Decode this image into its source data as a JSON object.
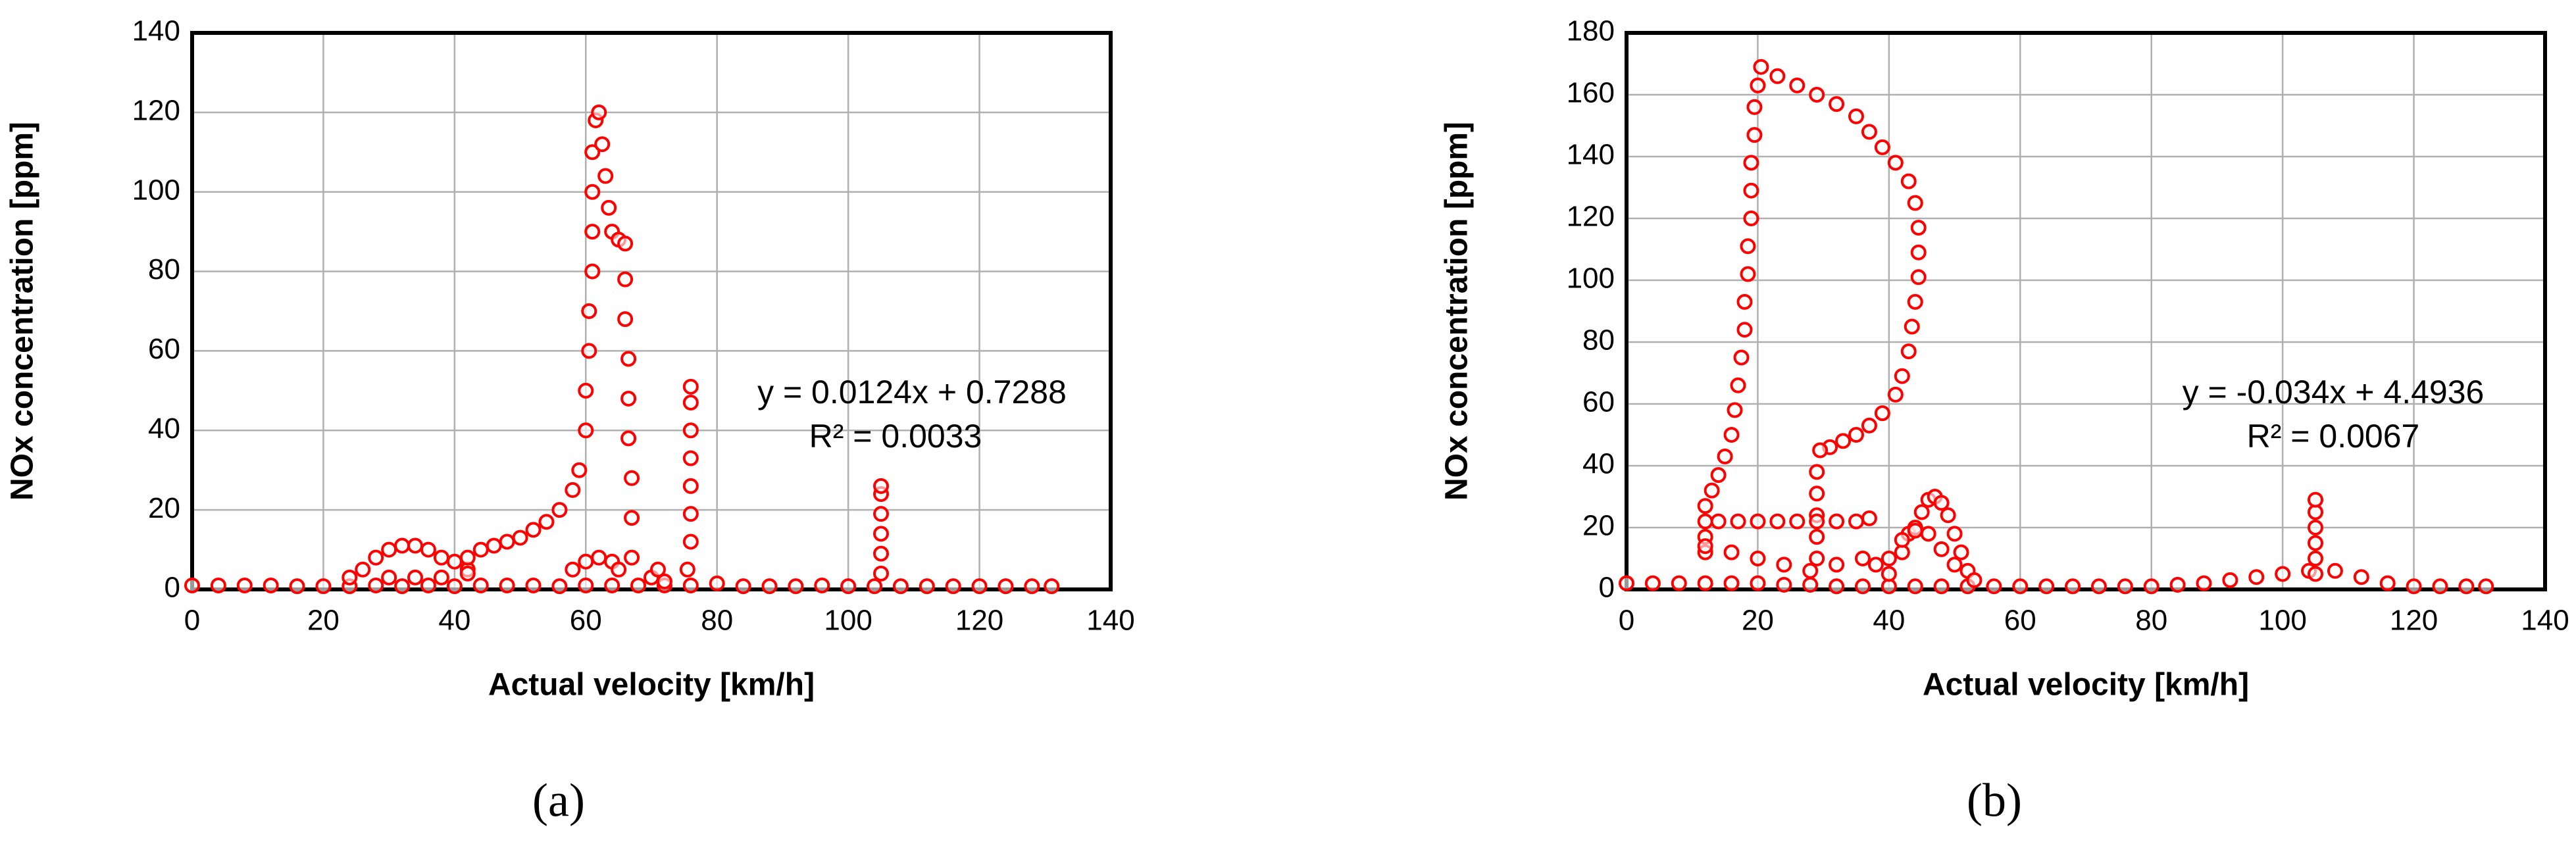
{
  "chart_data": [
    {
      "type": "scatter",
      "caption": "(a)",
      "xlabel": "Actual velocity [km/h]",
      "ylabel": "NOx concentration [ppm]",
      "annotations": [
        "y = 0.0124x + 0.7288",
        "R² = 0.0033"
      ],
      "color": "#ff0000",
      "grid": true,
      "xlim": [
        0,
        140
      ],
      "xticks": [
        0,
        20,
        40,
        60,
        80,
        100,
        120,
        140
      ],
      "ylim": [
        0,
        140
      ],
      "yticks": [
        0,
        20,
        40,
        60,
        80,
        100,
        120,
        140
      ],
      "x": [
        0,
        4,
        8,
        12,
        16,
        20,
        24,
        28,
        32,
        36,
        40,
        44,
        48,
        52,
        56,
        60,
        64,
        68,
        72,
        76,
        80,
        84,
        88,
        92,
        96,
        100,
        104,
        108,
        112,
        116,
        120,
        124,
        128,
        131,
        24,
        26,
        28,
        30,
        32,
        34,
        36,
        38,
        40,
        42,
        30,
        34,
        38,
        42,
        42,
        44,
        46,
        48,
        50,
        52,
        54,
        56,
        58,
        59,
        60,
        60,
        60.5,
        60.5,
        61,
        61,
        61,
        61,
        61.5,
        62,
        62.5,
        63,
        63.5,
        64,
        65,
        66,
        66,
        66,
        66.5,
        66.5,
        66.5,
        67,
        67,
        67,
        58,
        60,
        62,
        64,
        65,
        70,
        71,
        72,
        75.5,
        76,
        76,
        76,
        76,
        76,
        76,
        76,
        105,
        105,
        105,
        105,
        105,
        105
      ],
      "values": [
        1,
        1,
        1,
        1,
        0.8,
        0.8,
        0.8,
        1,
        0.8,
        1,
        0.8,
        1,
        1,
        1,
        0.8,
        1,
        1,
        1,
        1,
        1,
        1.5,
        0.8,
        0.8,
        0.8,
        1,
        0.8,
        0.8,
        0.8,
        0.8,
        0.8,
        0.8,
        0.8,
        0.8,
        0.8,
        3,
        5,
        8,
        10,
        11,
        11,
        10,
        8,
        7,
        5,
        3,
        3,
        3,
        4,
        8,
        10,
        11,
        12,
        13,
        15,
        17,
        20,
        25,
        30,
        40,
        50,
        60,
        70,
        80,
        90,
        100,
        110,
        118,
        120,
        112,
        104,
        96,
        90,
        88,
        87,
        78,
        68,
        58,
        48,
        38,
        28,
        18,
        8,
        5,
        7,
        8,
        7,
        5,
        3,
        5,
        2,
        5,
        12,
        19,
        26,
        33,
        40,
        47,
        51,
        4,
        9,
        14,
        19,
        24,
        26
      ]
    },
    {
      "type": "scatter",
      "caption": "(b)",
      "xlabel": "Actual velocity [km/h]",
      "ylabel": "NOx concentration [ppm]",
      "annotations": [
        "y = -0.034x + 4.4936",
        "R² = 0.0067"
      ],
      "color": "#ff0000",
      "grid": true,
      "xlim": [
        0,
        140
      ],
      "xticks": [
        0,
        20,
        40,
        60,
        80,
        100,
        120,
        140
      ],
      "ylim": [
        0,
        180
      ],
      "yticks": [
        0,
        20,
        40,
        60,
        80,
        100,
        120,
        140,
        160,
        180
      ],
      "x": [
        0,
        4,
        8,
        12,
        16,
        20,
        24,
        28,
        32,
        36,
        40,
        44,
        48,
        52,
        56,
        60,
        64,
        68,
        72,
        76,
        80,
        84,
        88,
        92,
        96,
        100,
        104,
        108,
        112,
        116,
        120,
        124,
        128,
        131,
        12,
        12,
        12,
        12,
        13,
        14,
        15,
        16,
        16.5,
        17,
        17.5,
        18,
        18,
        18.5,
        18.5,
        19,
        19,
        19,
        19.5,
        19.5,
        20,
        20.5,
        23,
        26,
        29,
        32,
        35,
        37,
        39,
        41,
        43,
        44,
        44.5,
        44.5,
        44.5,
        44,
        43.5,
        43,
        42,
        41,
        39,
        37,
        35,
        33,
        31,
        29.5,
        29,
        29,
        29,
        29,
        29,
        14,
        17,
        20,
        23,
        26,
        29,
        32,
        35,
        37,
        12,
        16,
        20,
        24,
        28,
        32,
        36,
        38,
        40,
        42,
        43,
        44,
        45,
        46,
        47,
        48,
        49,
        50,
        51,
        52,
        53,
        40,
        42,
        44,
        46,
        48,
        50,
        105,
        105,
        105,
        105,
        105,
        105
      ],
      "values": [
        2,
        2,
        2,
        2,
        2,
        2,
        1.5,
        1.5,
        1,
        1,
        1,
        1,
        1,
        1,
        1,
        1,
        1,
        1,
        1,
        1,
        1,
        1.5,
        2,
        3,
        4,
        5,
        6,
        6,
        4,
        2,
        1,
        1,
        1,
        1,
        12,
        17,
        22,
        27,
        32,
        37,
        43,
        50,
        58,
        66,
        75,
        84,
        93,
        102,
        111,
        120,
        129,
        138,
        147,
        156,
        163,
        169,
        166,
        163,
        160,
        157,
        153,
        148,
        143,
        138,
        132,
        125,
        117,
        109,
        101,
        93,
        85,
        77,
        69,
        63,
        57,
        53,
        50,
        48,
        46,
        45,
        38,
        31,
        24,
        17,
        10,
        22,
        22,
        22,
        22,
        22,
        22,
        22,
        22,
        23,
        14,
        12,
        10,
        8,
        6,
        8,
        10,
        8,
        5,
        12,
        18,
        20,
        25,
        29,
        30,
        28,
        24,
        18,
        12,
        6,
        3,
        10,
        16,
        19,
        18,
        13,
        8,
        5,
        10,
        15,
        20,
        25,
        29
      ]
    }
  ]
}
